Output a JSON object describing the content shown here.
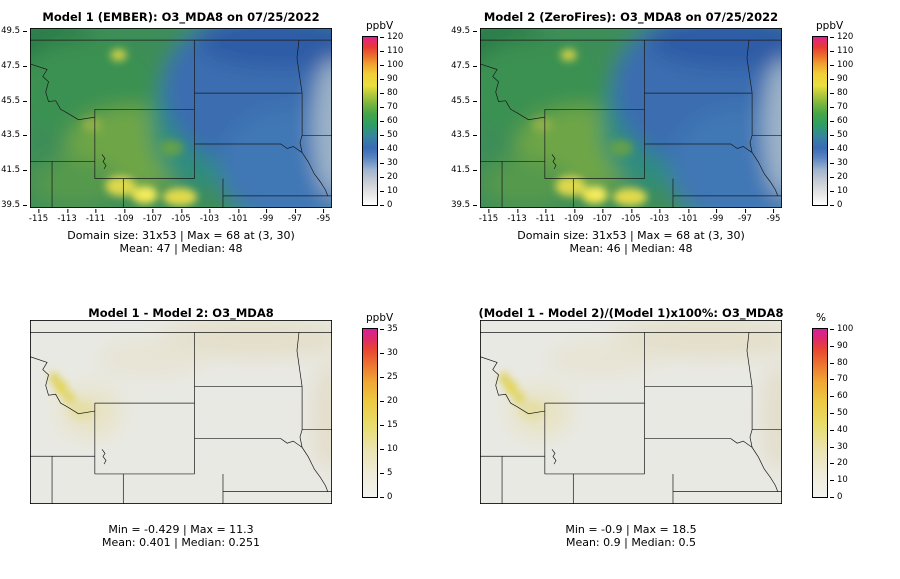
{
  "figure": {
    "background": "#ffffff"
  },
  "panels": [
    {
      "id": "model1",
      "title": "Model 1 (EMBER): O3_MDA8 on 07/25/2022",
      "x_ticks": [
        "-115",
        "-113",
        "-111",
        "-109",
        "-107",
        "-105",
        "-103",
        "-101",
        "-99",
        "-97",
        "-95"
      ],
      "y_ticks": [
        "49.5",
        "47.5",
        "45.5",
        "43.5",
        "41.5",
        "39.5"
      ],
      "colorbar": {
        "label": "ppbV",
        "ticks": [
          "0",
          "10",
          "20",
          "30",
          "40",
          "50",
          "60",
          "70",
          "80",
          "90",
          "100",
          "110",
          "120"
        ],
        "stops": [
          "#ffffff 0%",
          "#e8e8e8 6%",
          "#c8cdd4 14%",
          "#9fb4cf 21%",
          "#5a85c2 28%",
          "#3a6ab5 34%",
          "#35869c 41%",
          "#2f9e62 48%",
          "#43a648 54%",
          "#79b43f 60%",
          "#b5c93c 66%",
          "#eadf3d 71%",
          "#f2cf38 78%",
          "#f0a030 84%",
          "#ec6c2c 89%",
          "#e83a34 94%",
          "#e0218c 100%"
        ]
      },
      "caption1": "Domain size: 31x53 | Max = 68 at (3, 30)",
      "caption2": "Mean: 47 | Median: 48"
    },
    {
      "id": "model2",
      "title": "Model 2 (ZeroFires): O3_MDA8 on 07/25/2022",
      "x_ticks": [
        "-115",
        "-113",
        "-111",
        "-109",
        "-107",
        "-105",
        "-103",
        "-101",
        "-99",
        "-97",
        "-95"
      ],
      "y_ticks": [
        "49.5",
        "47.5",
        "45.5",
        "43.5",
        "41.5",
        "39.5"
      ],
      "colorbar": {
        "label": "ppbV",
        "ticks": [
          "0",
          "10",
          "20",
          "30",
          "40",
          "50",
          "60",
          "70",
          "80",
          "90",
          "100",
          "110",
          "120"
        ],
        "stops": [
          "#ffffff 0%",
          "#e8e8e8 6%",
          "#c8cdd4 14%",
          "#9fb4cf 21%",
          "#5a85c2 28%",
          "#3a6ab5 34%",
          "#35869c 41%",
          "#2f9e62 48%",
          "#43a648 54%",
          "#79b43f 60%",
          "#b5c93c 66%",
          "#eadf3d 71%",
          "#f2cf38 78%",
          "#f0a030 84%",
          "#ec6c2c 89%",
          "#e83a34 94%",
          "#e0218c 100%"
        ]
      },
      "caption1": "Domain size: 31x53 | Max = 68 at (3, 30)",
      "caption2": "Mean: 46 | Median: 48"
    },
    {
      "id": "difference",
      "title": "Model 1 - Model 2: O3_MDA8",
      "colorbar": {
        "label": "ppbV",
        "ticks": [
          "0",
          "5",
          "10",
          "15",
          "20",
          "25",
          "30",
          "35"
        ],
        "stops": [
          "#f3f3ee 0%",
          "#eeebd8 14%",
          "#eae3ae 29%",
          "#e8dc6a 43%",
          "#ecca41 57%",
          "#f0a534 69%",
          "#ec7330 79%",
          "#e84434 88%",
          "#df2a68 94%",
          "#d2219e 100%"
        ]
      },
      "caption1": "Min = -0.429 | Max = 11.3",
      "caption2": "Mean: 0.401 | Median: 0.251"
    },
    {
      "id": "percent-difference",
      "title": "(Model 1 - Model 2)/(Model 1)x100%: O3_MDA8",
      "colorbar": {
        "label": "%",
        "ticks": [
          "0",
          "10",
          "20",
          "30",
          "40",
          "50",
          "60",
          "70",
          "80",
          "90",
          "100"
        ],
        "stops": [
          "#f3f3ee 0%",
          "#eeebd8 14%",
          "#eae3ae 29%",
          "#e8dc6a 43%",
          "#ecca41 57%",
          "#f0a534 69%",
          "#ec7330 79%",
          "#e84434 88%",
          "#df2a68 94%",
          "#d2219e 100%"
        ]
      },
      "caption1": "Min = -0.9 | Max = 18.5",
      "caption2": "Mean: 0.9 | Median: 0.5"
    }
  ],
  "chart_data": [
    {
      "type": "heatmap",
      "title": "Model 1 (EMBER): O3_MDA8 on 07/25/2022",
      "units": "ppbV",
      "lon_ticks": [
        -115,
        -113,
        -111,
        -109,
        -107,
        -105,
        -103,
        -101,
        -99,
        -97,
        -95
      ],
      "lat_ticks": [
        39.5,
        41.5,
        43.5,
        45.5,
        47.5,
        49.5
      ],
      "colorbar_range": [
        0,
        120
      ],
      "colorbar_tick_step": 10,
      "domain_size": "31x53",
      "max": 68,
      "max_at": "(3, 30)",
      "mean": 47,
      "median": 48
    },
    {
      "type": "heatmap",
      "title": "Model 2 (ZeroFires): O3_MDA8 on 07/25/2022",
      "units": "ppbV",
      "lon_ticks": [
        -115,
        -113,
        -111,
        -109,
        -107,
        -105,
        -103,
        -101,
        -99,
        -97,
        -95
      ],
      "lat_ticks": [
        39.5,
        41.5,
        43.5,
        45.5,
        47.5,
        49.5
      ],
      "colorbar_range": [
        0,
        120
      ],
      "colorbar_tick_step": 10,
      "domain_size": "31x53",
      "max": 68,
      "max_at": "(3, 30)",
      "mean": 46,
      "median": 48
    },
    {
      "type": "heatmap",
      "title": "Model 1 - Model 2: O3_MDA8",
      "units": "ppbV",
      "colorbar_range": [
        0,
        35
      ],
      "colorbar_tick_step": 5,
      "min": -0.429,
      "max": 11.3,
      "mean": 0.401,
      "median": 0.251
    },
    {
      "type": "heatmap",
      "title": "(Model 1 - Model 2)/(Model 1)x100%: O3_MDA8",
      "units": "%",
      "colorbar_range": [
        0,
        100
      ],
      "colorbar_tick_step": 10,
      "min": -0.9,
      "max": 18.5,
      "mean": 0.9,
      "median": 0.5
    }
  ]
}
